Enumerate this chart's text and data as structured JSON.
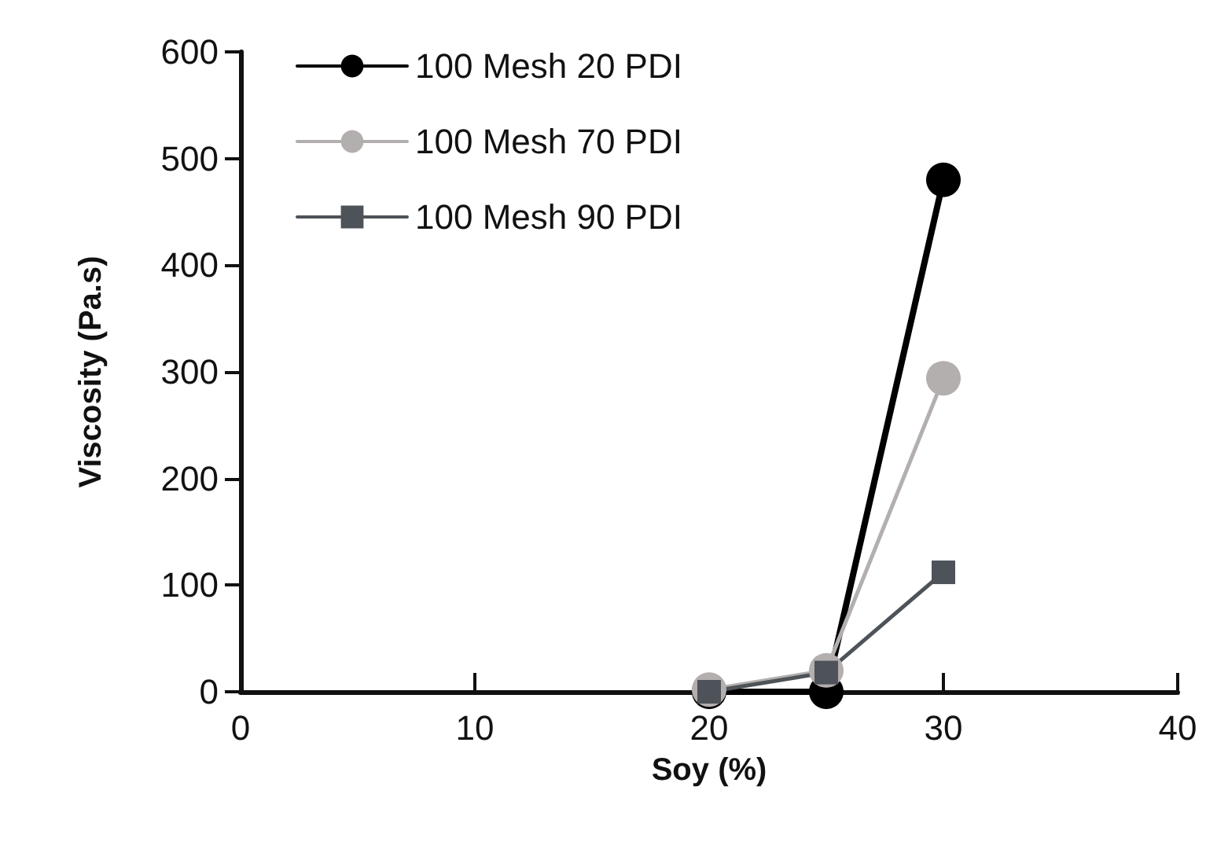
{
  "chart_data": {
    "type": "line",
    "xlabel": "Soy (%)",
    "ylabel": "Viscosity (Pa.s)",
    "x": [
      20,
      25,
      30
    ],
    "series": [
      {
        "name": "100 Mesh 20 PDI",
        "color": "#000000",
        "marker": "circle",
        "values": [
          0,
          0,
          480
        ]
      },
      {
        "name": "100 Mesh 70 PDI",
        "color": "#b3afae",
        "marker": "circle",
        "values": [
          2,
          20,
          294
        ]
      },
      {
        "name": "100 Mesh 90 PDI",
        "color": "#4d5358",
        "marker": "square",
        "values": [
          0,
          18,
          112
        ]
      }
    ],
    "xlim": [
      0,
      40
    ],
    "xticks": [
      0,
      10,
      20,
      30,
      40
    ],
    "ylim": [
      0,
      600
    ],
    "yticks": [
      0,
      100,
      200,
      300,
      400,
      500,
      600
    ],
    "grid": false,
    "legend": "top left"
  }
}
